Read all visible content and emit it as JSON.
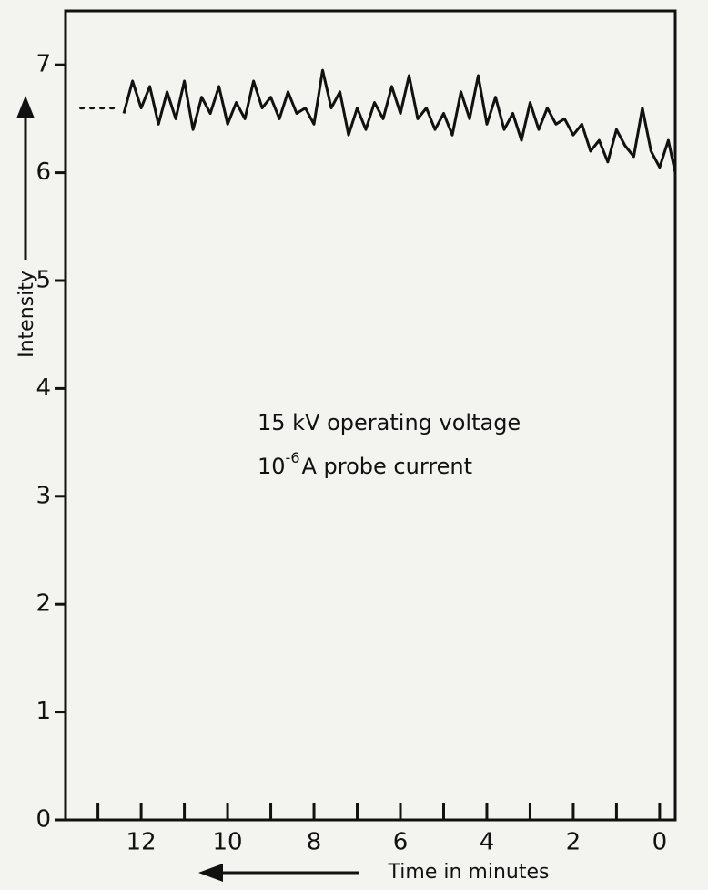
{
  "chart_data": {
    "type": "line",
    "y_label": "Intensity",
    "x_label": "Time in minutes",
    "annotation_voltage": "15 kV operating voltage",
    "annotation_current": {
      "base": "10",
      "exponent": "-6",
      "text": "A probe current"
    },
    "xlim": [
      13.75,
      -0.36
    ],
    "ylim": [
      0,
      7.5
    ],
    "xticks": [
      0,
      2,
      4,
      6,
      8,
      10,
      12
    ],
    "xminor_ticks": [
      1,
      3,
      5,
      7,
      9,
      11,
      13
    ],
    "yticks": [
      0,
      1,
      2,
      3,
      4,
      5,
      6,
      7
    ],
    "series": [
      {
        "color": "#111111",
        "style": "solid",
        "x": [
          12.4,
          12.2,
          12.0,
          11.8,
          11.6,
          11.4,
          11.2,
          11.0,
          10.8,
          10.6,
          10.4,
          10.2,
          10.0,
          9.8,
          9.6,
          9.4,
          9.2,
          9.0,
          8.8,
          8.6,
          8.4,
          8.2,
          8.0,
          7.8,
          7.6,
          7.4,
          7.2,
          7.0,
          6.8,
          6.6,
          6.4,
          6.2,
          6.0,
          5.8,
          5.6,
          5.4,
          5.2,
          5.0,
          4.8,
          4.6,
          4.4,
          4.2,
          4.0,
          3.8,
          3.6,
          3.4,
          3.2,
          3.0,
          2.8,
          2.6,
          2.4,
          2.2,
          2.0,
          1.8,
          1.6,
          1.4,
          1.2,
          1.0,
          0.8,
          0.6,
          0.4,
          0.2,
          0.0,
          -0.2,
          -0.36
        ],
        "values": [
          6.55,
          6.85,
          6.6,
          6.8,
          6.45,
          6.75,
          6.5,
          6.85,
          6.4,
          6.7,
          6.55,
          6.8,
          6.45,
          6.65,
          6.5,
          6.85,
          6.6,
          6.7,
          6.5,
          6.75,
          6.55,
          6.6,
          6.45,
          6.95,
          6.6,
          6.75,
          6.35,
          6.6,
          6.4,
          6.65,
          6.5,
          6.8,
          6.55,
          6.9,
          6.5,
          6.6,
          6.4,
          6.55,
          6.35,
          6.75,
          6.5,
          6.9,
          6.45,
          6.7,
          6.4,
          6.55,
          6.3,
          6.65,
          6.4,
          6.6,
          6.45,
          6.5,
          6.35,
          6.45,
          6.2,
          6.3,
          6.1,
          6.4,
          6.25,
          6.15,
          6.6,
          6.2,
          6.05,
          6.3,
          6.0
        ]
      },
      {
        "color": "#111111",
        "style": "dotted",
        "x": [
          13.4,
          12.6
        ],
        "values": [
          6.6,
          6.6
        ]
      }
    ]
  }
}
